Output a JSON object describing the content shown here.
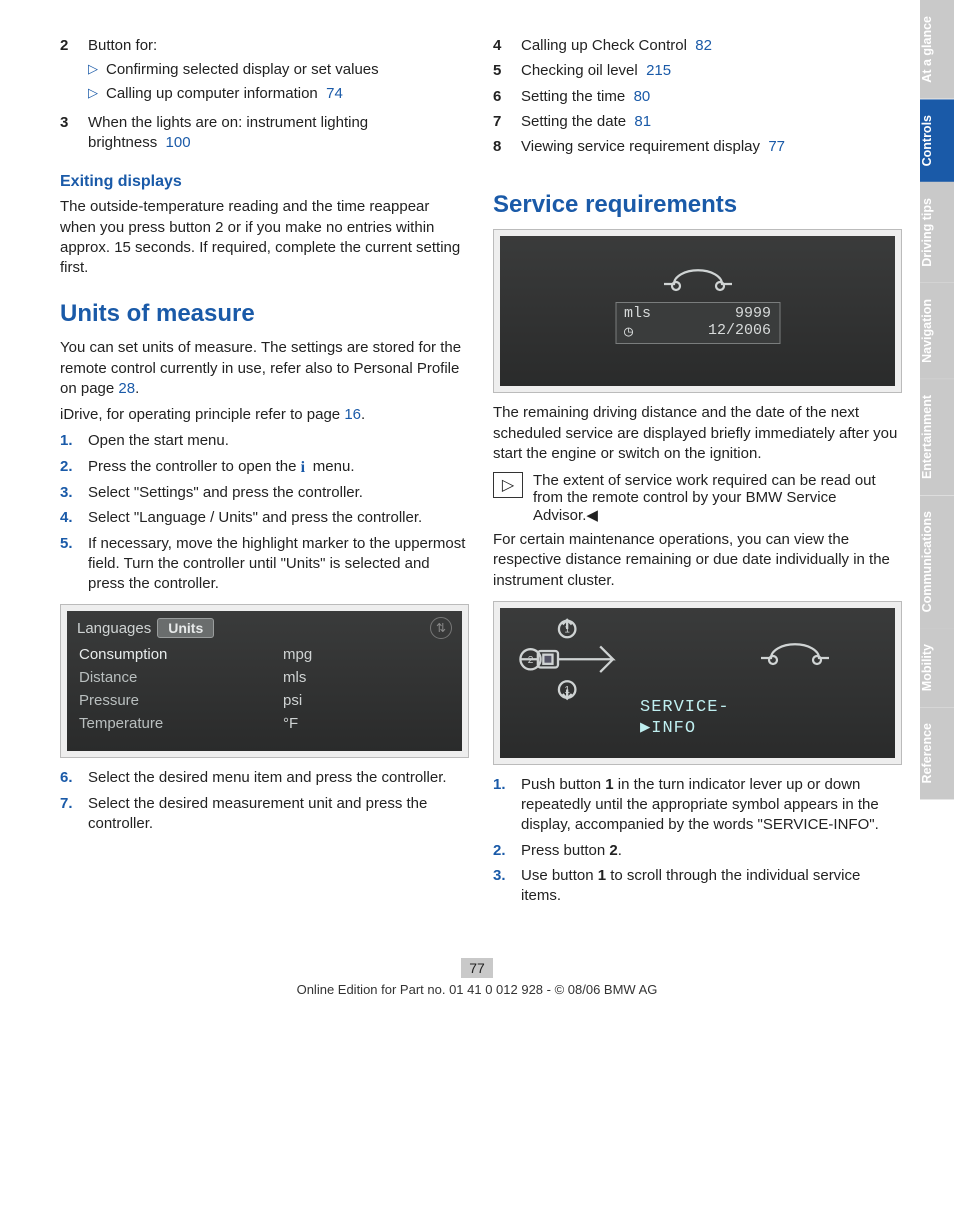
{
  "left": {
    "list_top": [
      {
        "n": "2",
        "text": "Button for:",
        "black": true,
        "sub": [
          "Confirming selected display or set values",
          {
            "text": "Calling up computer information",
            "ref": "74"
          }
        ]
      },
      {
        "n": "3",
        "text": "When the lights are on: instrument lighting brightness",
        "ref": "100",
        "black": true
      }
    ],
    "exit_h": "Exiting displays",
    "exit_p": "The outside-temperature reading and the time reappear when you press button 2 or if you make no entries within approx. 15 seconds. If required, complete the current setting first.",
    "units_h": "Units of measure",
    "units_p1a": "You can set units of measure. The settings are stored for the remote control currently in use, refer also to Personal Profile on page ",
    "units_p1_ref": "28",
    "units_p2a": "iDrive, for operating principle refer to page ",
    "units_p2_ref": "16",
    "steps1": [
      "Open the start menu.",
      "Press the controller to open the __IICON__ menu.",
      "Select \"Settings\" and press the controller.",
      "Select \"Language / Units\" and press the controller.",
      "If necessary, move the highlight marker to the uppermost field. Turn the controller until \"Units\" is selected and press the controller."
    ],
    "settings_screen": {
      "tab_left": "Languages",
      "tab_sel": "Units",
      "rows": [
        {
          "k": "Consumption",
          "v": "mpg",
          "sel": true
        },
        {
          "k": "Distance",
          "v": "mls"
        },
        {
          "k": "Pressure",
          "v": "psi"
        },
        {
          "k": "Temperature",
          "v": "°F"
        }
      ]
    },
    "steps2": [
      "Select the desired menu item and press the controller.",
      "Select the desired measurement unit and press the controller."
    ],
    "steps2_start": 6
  },
  "right": {
    "list_top": [
      {
        "n": "4",
        "text": "Calling up Check Control",
        "ref": "82"
      },
      {
        "n": "5",
        "text": "Checking oil level",
        "ref": "215"
      },
      {
        "n": "6",
        "text": "Setting the time",
        "ref": "80"
      },
      {
        "n": "7",
        "text": "Setting the date",
        "ref": "81"
      },
      {
        "n": "8",
        "text": "Viewing service requirement display",
        "ref": "77"
      }
    ],
    "srv_h": "Service requirements",
    "miles_screen": {
      "mls": "mls",
      "val": "9999",
      "date": "12/2006"
    },
    "srv_p1": "The remaining driving distance and the date of the next scheduled service are displayed briefly immediately after you start the engine or switch on the ignition.",
    "note": "The extent of service work required can be read out from the remote control by your BMW Service Advisor.",
    "srv_p2": "For certain maintenance operations, you can view the respective distance remaining or due date individually in the instrument cluster.",
    "srvinfo_screen": {
      "l1": "SERVICE-",
      "l2": "INFO"
    },
    "steps": [
      {
        "text": "Push button 1 in the turn indicator lever up or down repeatedly until the appropriate symbol appears in the display, accompanied by the words \"SERVICE-INFO\"."
      },
      {
        "text": "Press button 2."
      },
      {
        "text": "Use button 1 to scroll through the individual service items."
      }
    ]
  },
  "tabs": [
    {
      "label": "At a glance",
      "cls": "muted"
    },
    {
      "label": "Controls",
      "cls": "active"
    },
    {
      "label": "Driving tips",
      "cls": "muted"
    },
    {
      "label": "Navigation",
      "cls": "muted"
    },
    {
      "label": "Entertainment",
      "cls": "muted"
    },
    {
      "label": "Communications",
      "cls": "muted"
    },
    {
      "label": "Mobility",
      "cls": "muted"
    },
    {
      "label": "Reference",
      "cls": "muted"
    }
  ],
  "footer": {
    "page": "77",
    "line": "Online Edition for Part no. 01 41 0 012 928 - © 08/06 BMW AG"
  }
}
